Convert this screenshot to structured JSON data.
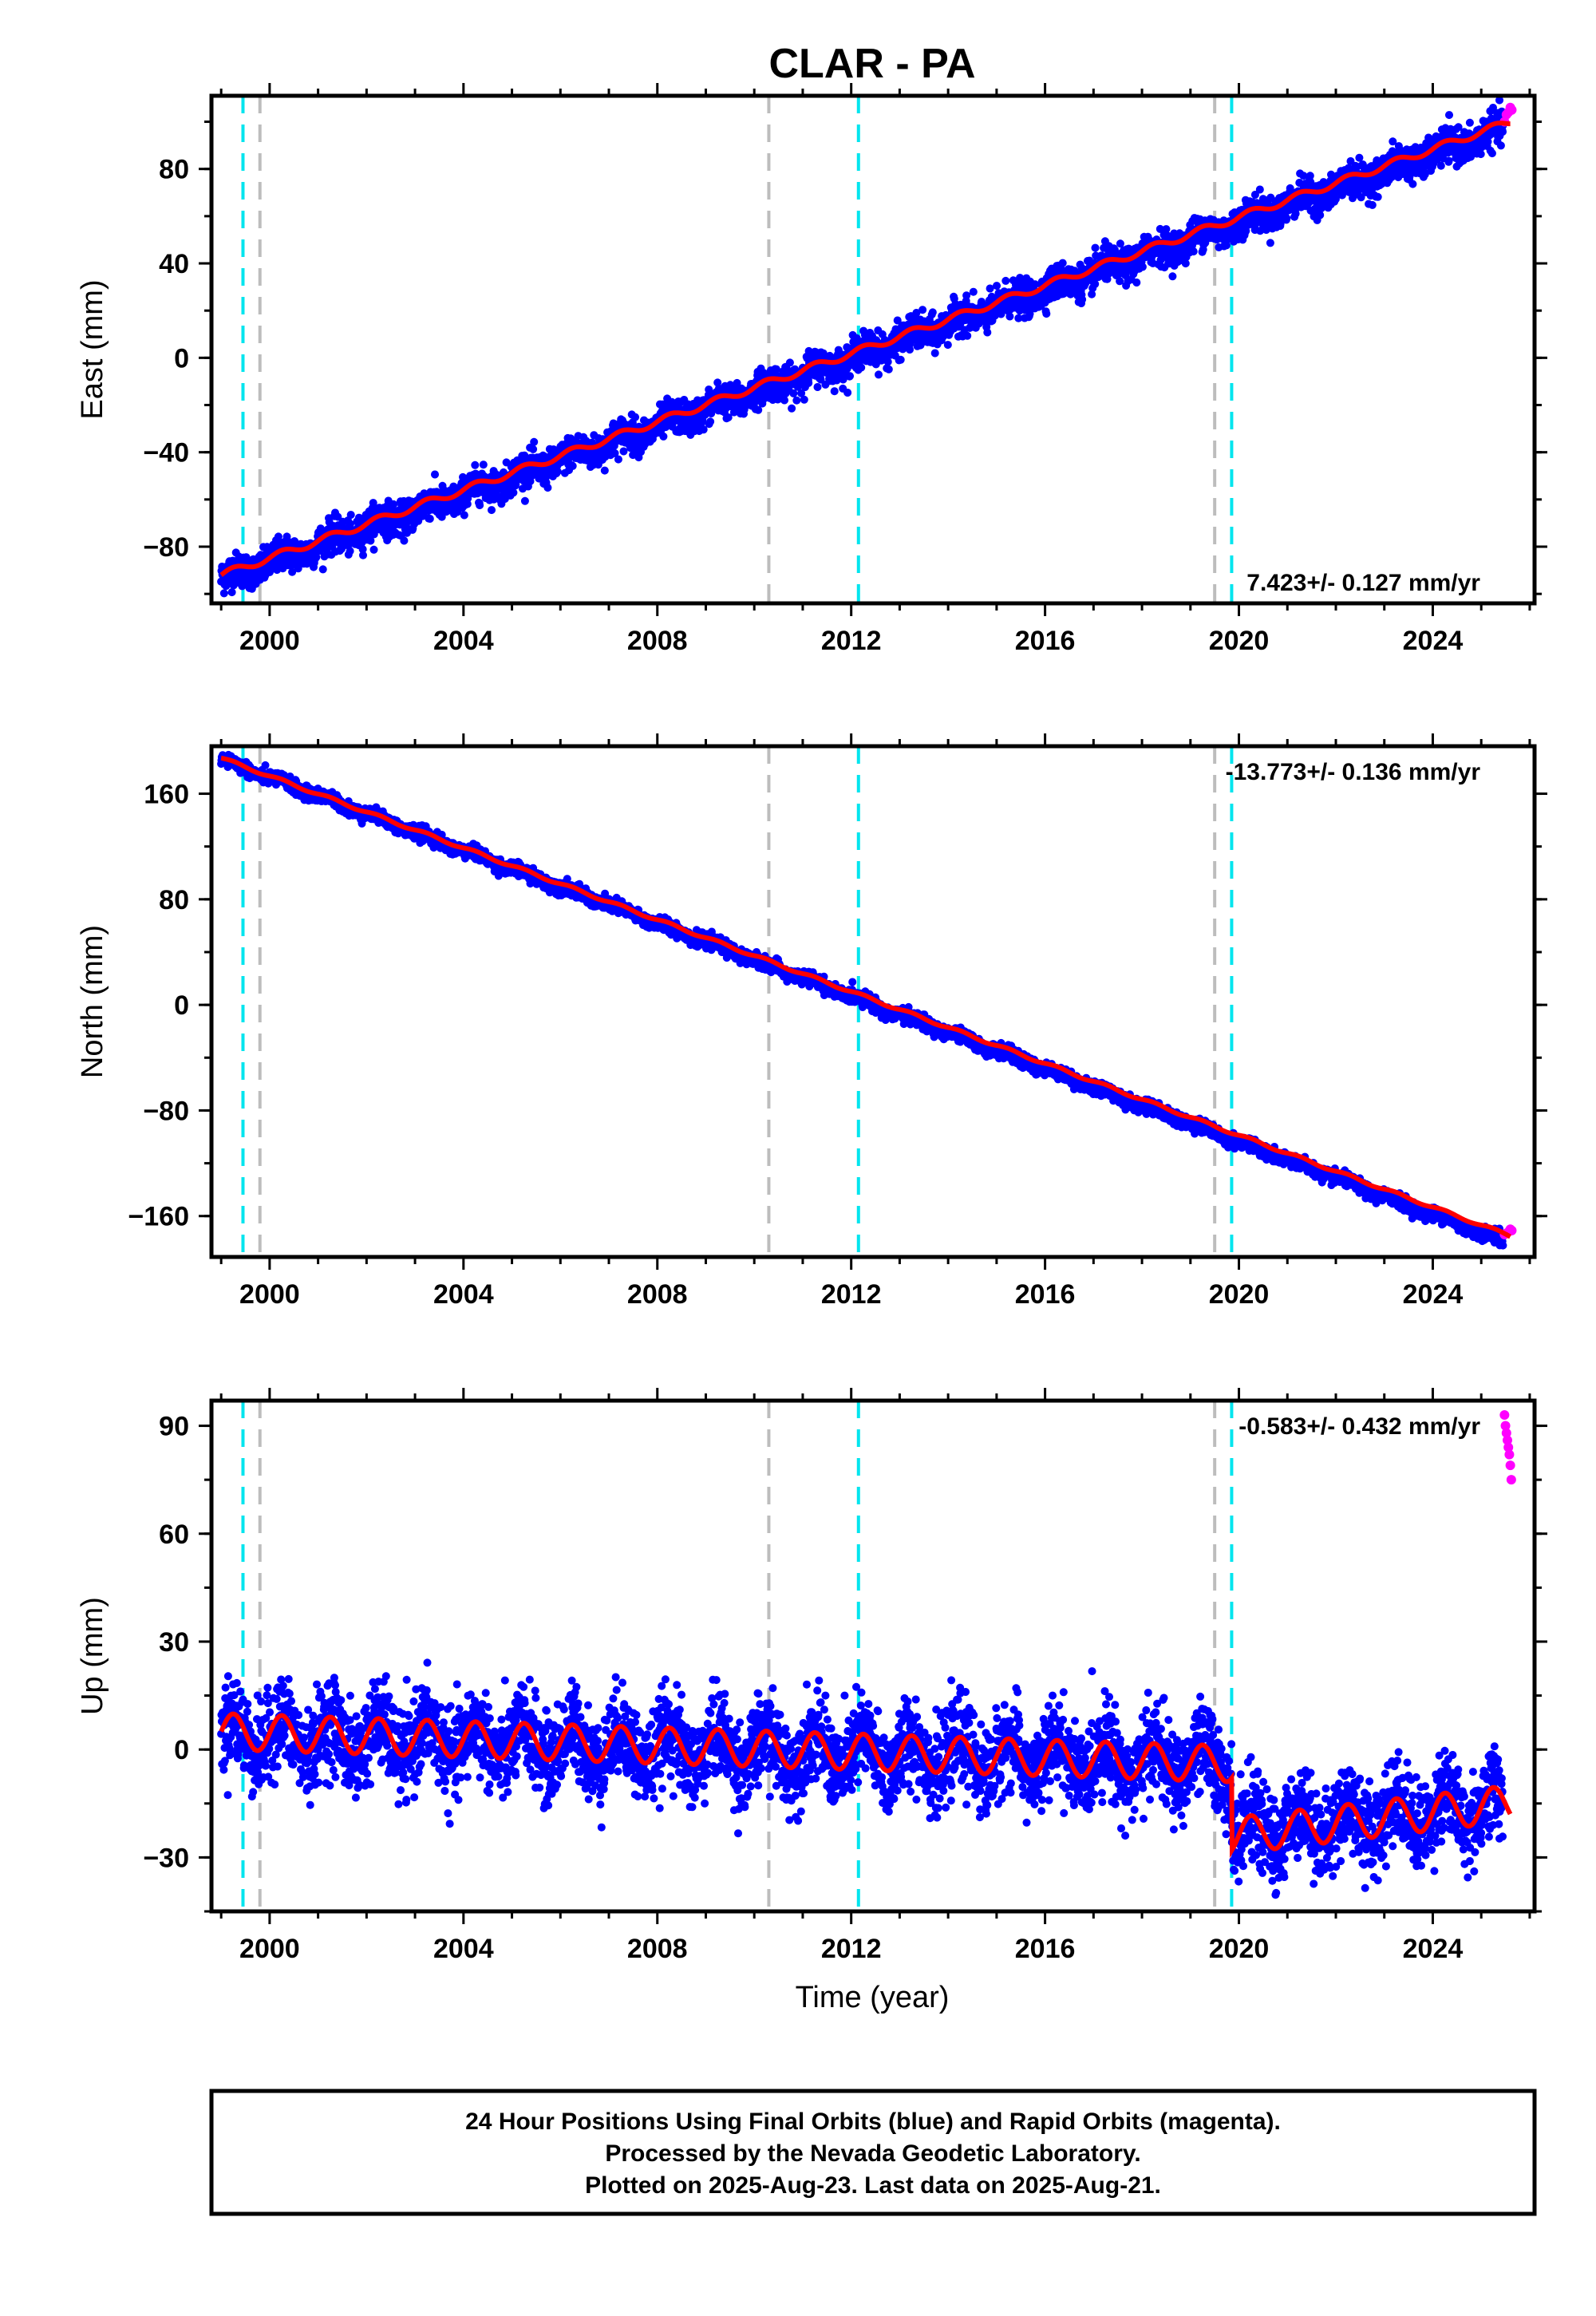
{
  "title": "CLAR - PA",
  "xlabel": "Time (year)",
  "colors": {
    "final": "#0000ff",
    "rapid": "#ff00ff",
    "model": "#ff0000",
    "event_cyan": "#00e5ee",
    "event_gray": "#bdbdbd"
  },
  "footer": {
    "line1": "24 Hour Positions Using Final Orbits (blue) and Rapid Orbits (magenta).",
    "line2": "Processed by the Nevada Geodetic Laboratory.",
    "line3": "Plotted on 2025-Aug-23. Last data on 2025-Aug-21."
  },
  "chart_data": [
    {
      "type": "scatter",
      "component": "east",
      "ylabel": "East (mm)",
      "rate_label": "7.423+/- 0.127 mm/yr",
      "xlim": [
        1998.8,
        2026.1
      ],
      "ylim": [
        -104,
        111
      ],
      "xticks": [
        2000,
        2004,
        2008,
        2012,
        2016,
        2020,
        2024
      ],
      "yticks": [
        -80,
        -40,
        0,
        40,
        80
      ],
      "event_lines_cyan": [
        1999.45,
        2012.15,
        2019.85
      ],
      "event_lines_gray": [
        1999.8,
        2010.3,
        2019.5
      ],
      "series": [
        {
          "kind": "final",
          "trend": [
            [
              1999.0,
              -92
            ],
            [
              2025.4,
              98
            ]
          ],
          "scatter_mm": 3.5,
          "seasonal_mm": 2.0,
          "end": 2025.45
        },
        {
          "kind": "rapid",
          "x": [
            2025.48,
            2025.52,
            2025.56,
            2025.6,
            2025.63
          ],
          "y": [
            100,
            103,
            104,
            106,
            105
          ]
        },
        {
          "kind": "model",
          "trend": [
            [
              1999.0,
              -92
            ],
            [
              2025.6,
              100
            ]
          ],
          "seasonal_mm": 1.5
        }
      ]
    },
    {
      "type": "scatter",
      "component": "north",
      "ylabel": "North (mm)",
      "rate_label": "-13.773+/- 0.136 mm/yr",
      "xlim": [
        1998.8,
        2026.1
      ],
      "ylim": [
        -191,
        196
      ],
      "xticks": [
        2000,
        2004,
        2008,
        2012,
        2016,
        2020,
        2024
      ],
      "yticks": [
        -160,
        -80,
        0,
        80,
        160
      ],
      "event_lines_cyan": [
        1999.45,
        2012.15,
        2019.85
      ],
      "event_lines_gray": [
        1999.8,
        2010.3,
        2019.5
      ],
      "series": [
        {
          "kind": "final",
          "trend": [
            [
              1999.0,
              189
            ],
            [
              2025.4,
              -175
            ]
          ],
          "scatter_mm": 2.5,
          "seasonal_mm": 1.5,
          "end": 2025.45
        },
        {
          "kind": "rapid",
          "x": [
            2025.48,
            2025.52,
            2025.56,
            2025.6,
            2025.63
          ],
          "y": [
            -174,
            -173,
            -172,
            -170,
            -171
          ]
        },
        {
          "kind": "model",
          "trend": [
            [
              1999.0,
              187
            ],
            [
              2025.6,
              -175
            ]
          ],
          "seasonal_mm": 1.0
        }
      ]
    },
    {
      "type": "scatter",
      "component": "up",
      "ylabel": "Up (mm)",
      "rate_label": "-0.583+/- 0.432 mm/yr",
      "xlim": [
        1998.8,
        2026.1
      ],
      "ylim": [
        -45,
        97
      ],
      "xticks": [
        2000,
        2004,
        2008,
        2012,
        2016,
        2020,
        2024
      ],
      "yticks": [
        -30,
        0,
        30,
        60,
        90
      ],
      "event_lines_cyan": [
        1999.45,
        2012.15,
        2019.85
      ],
      "event_lines_gray": [
        1999.8,
        2010.3,
        2019.5
      ],
      "series": [
        {
          "kind": "final",
          "segments": [
            [
              1999.0,
              2019.85,
              5,
              -3
            ],
            [
              2019.85,
              2025.45,
              -22,
              -14
            ]
          ],
          "scatter_mm": 6.0,
          "seasonal_mm": 5.0,
          "end": 2025.45
        },
        {
          "kind": "rapid",
          "x": [
            2025.48,
            2025.5,
            2025.52,
            2025.54,
            2025.56,
            2025.58,
            2025.6,
            2025.62
          ],
          "y": [
            93,
            90,
            88,
            86,
            84,
            82,
            79,
            75
          ]
        },
        {
          "kind": "model",
          "segments": [
            [
              1999.0,
              2019.85,
              5,
              -4
            ],
            [
              2019.85,
              2025.6,
              -24,
              -15
            ]
          ],
          "seasonal_mm": 5.0
        }
      ]
    }
  ]
}
